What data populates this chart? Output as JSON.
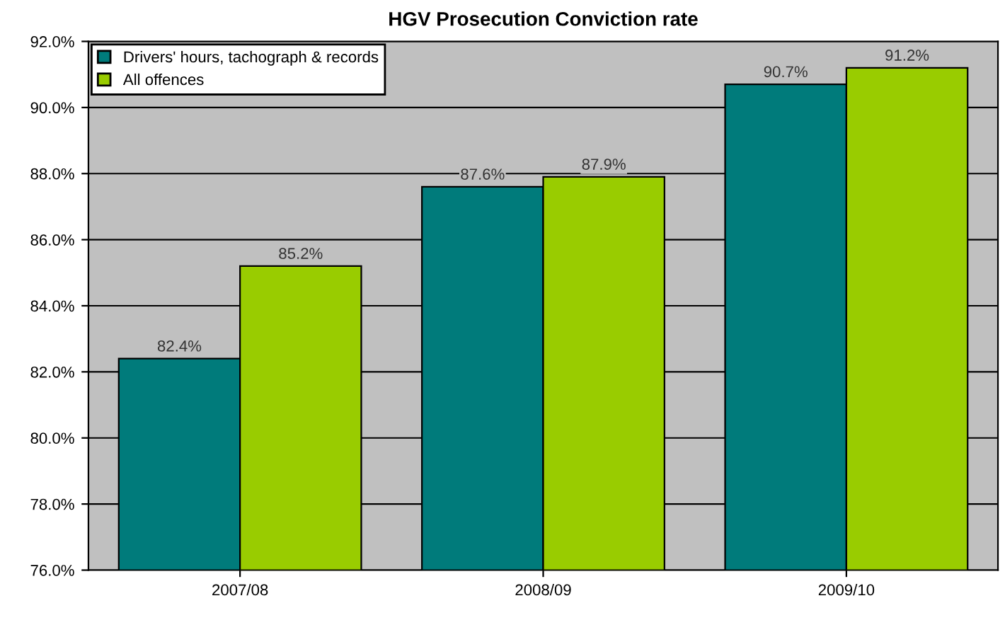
{
  "chart_data": {
    "type": "bar",
    "title": "HGV Prosecution Conviction rate",
    "categories": [
      "2007/08",
      "2008/09",
      "2009/10"
    ],
    "series": [
      {
        "name": "Drivers' hours, tachograph & records",
        "color": "#007b7b",
        "values": [
          82.4,
          87.6,
          90.7
        ],
        "value_labels": [
          "82.4%",
          "87.6%",
          "90.7%"
        ]
      },
      {
        "name": "All offences",
        "color": "#99cc00",
        "values": [
          85.2,
          87.9,
          91.2
        ],
        "value_labels": [
          "85.2%",
          "87.9%",
          "91.2%"
        ]
      }
    ],
    "ylim": [
      76,
      92
    ],
    "yticks": [
      {
        "value": 76,
        "label": "76.0%"
      },
      {
        "value": 78,
        "label": "78.0%"
      },
      {
        "value": 80,
        "label": "80.0%"
      },
      {
        "value": 82,
        "label": "82.0%"
      },
      {
        "value": 84,
        "label": "84.0%"
      },
      {
        "value": 86,
        "label": "86.0%"
      },
      {
        "value": 88,
        "label": "88.0%"
      },
      {
        "value": 90,
        "label": "90.0%"
      },
      {
        "value": 92,
        "label": "92.0%"
      }
    ],
    "grid": "y",
    "legend": "top left"
  }
}
